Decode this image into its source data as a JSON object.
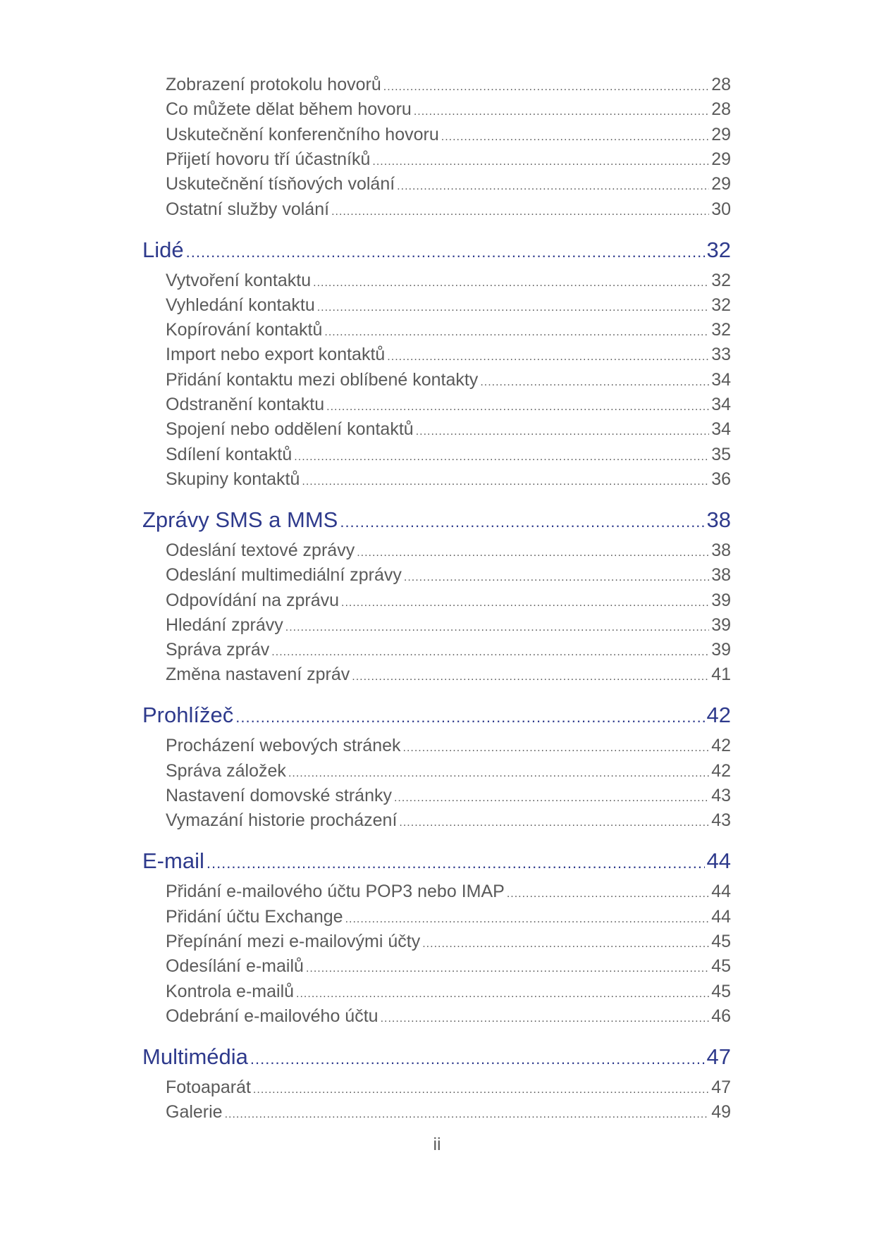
{
  "toc": [
    {
      "level": "sub",
      "title": "Zobrazení protokolu hovorů",
      "page": "28"
    },
    {
      "level": "sub",
      "title": "Co můžete dělat během hovoru",
      "page": "28"
    },
    {
      "level": "sub",
      "title": "Uskutečnění konferenčního hovoru",
      "page": "29"
    },
    {
      "level": "sub",
      "title": "Přijetí hovoru tří účastníků",
      "page": "29"
    },
    {
      "level": "sub",
      "title": "Uskutečnění tísňových volání",
      "page": "29"
    },
    {
      "level": "sub",
      "title": "Ostatní služby volání",
      "page": "30"
    },
    {
      "level": "chapter",
      "title": "Lidé",
      "page": "32"
    },
    {
      "level": "sub",
      "title": "Vytvoření kontaktu",
      "page": "32"
    },
    {
      "level": "sub",
      "title": "Vyhledání kontaktu",
      "page": "32"
    },
    {
      "level": "sub",
      "title": "Kopírování kontaktů",
      "page": "32"
    },
    {
      "level": "sub",
      "title": "Import nebo export kontaktů",
      "page": "33"
    },
    {
      "level": "sub",
      "title": "Přidání kontaktu mezi oblíbené kontakty",
      "page": "34"
    },
    {
      "level": "sub",
      "title": "Odstranění kontaktu",
      "page": "34"
    },
    {
      "level": "sub",
      "title": "Spojení nebo oddělení kontaktů",
      "page": "34"
    },
    {
      "level": "sub",
      "title": "Sdílení kontaktů",
      "page": "35"
    },
    {
      "level": "sub",
      "title": "Skupiny kontaktů",
      "page": "36"
    },
    {
      "level": "chapter",
      "title": "Zprávy SMS a MMS",
      "page": "38"
    },
    {
      "level": "sub",
      "title": "Odeslání textové zprávy",
      "page": "38"
    },
    {
      "level": "sub",
      "title": "Odeslání multimediální zprávy",
      "page": "38"
    },
    {
      "level": "sub",
      "title": "Odpovídání na zprávu",
      "page": "39"
    },
    {
      "level": "sub",
      "title": "Hledání zprávy",
      "page": "39"
    },
    {
      "level": "sub",
      "title": "Správa zpráv",
      "page": "39"
    },
    {
      "level": "sub",
      "title": "Změna nastavení zpráv",
      "page": "41"
    },
    {
      "level": "chapter",
      "title": "Prohlížeč",
      "page": "42"
    },
    {
      "level": "sub",
      "title": "Procházení webových stránek",
      "page": "42"
    },
    {
      "level": "sub",
      "title": "Správa záložek",
      "page": "42"
    },
    {
      "level": "sub",
      "title": "Nastavení domovské stránky",
      "page": "43"
    },
    {
      "level": "sub",
      "title": "Vymazání historie procházení",
      "page": "43"
    },
    {
      "level": "chapter",
      "title": "E-mail",
      "page": "44"
    },
    {
      "level": "sub",
      "title": "Přidání e-mailového účtu POP3 nebo IMAP",
      "page": "44"
    },
    {
      "level": "sub",
      "title": "Přidání účtu Exchange",
      "page": "44"
    },
    {
      "level": "sub",
      "title": "Přepínání mezi e-mailovými účty",
      "page": "45"
    },
    {
      "level": "sub",
      "title": "Odesílání e-mailů",
      "page": "45"
    },
    {
      "level": "sub",
      "title": "Kontrola e-mailů",
      "page": "45"
    },
    {
      "level": "sub",
      "title": "Odebrání e-mailového účtu",
      "page": "46"
    },
    {
      "level": "chapter",
      "title": "Multimédia",
      "page": "47"
    },
    {
      "level": "sub",
      "title": "Fotoaparát",
      "page": "47"
    },
    {
      "level": "sub",
      "title": "Galerie",
      "page": "49"
    }
  ],
  "footer": {
    "page_number": "ii"
  },
  "colors": {
    "chapter": "#2e3a8c",
    "entry": "#5a5a5a"
  }
}
